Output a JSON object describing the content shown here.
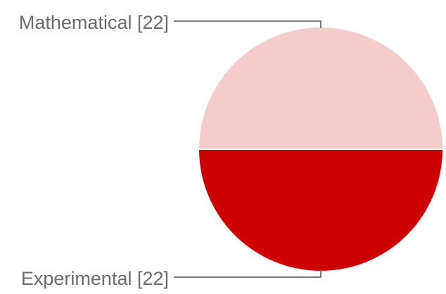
{
  "chart_data": {
    "type": "pie",
    "slices": [
      {
        "label": "Mathematical [22]",
        "value": 22,
        "color": "#f4cccc"
      },
      {
        "label": "Experimental [22]",
        "value": 22,
        "color": "#cc0000"
      }
    ],
    "legend": "none",
    "labels_placement": "leader-lines-left"
  }
}
